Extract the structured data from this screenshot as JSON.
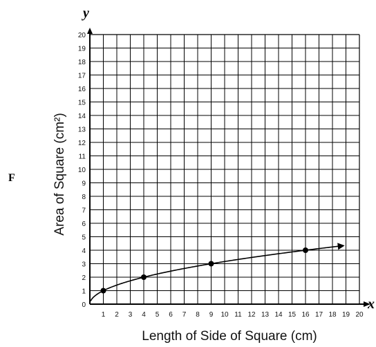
{
  "choice_label": "F",
  "chart_data": {
    "type": "line",
    "x_var": "x",
    "y_var": "y",
    "xlabel": "Length of Side of Square (cm)",
    "ylabel": "Area of Square (cm²)",
    "xlim": [
      0,
      20
    ],
    "ylim": [
      0,
      20
    ],
    "xticks": [
      1,
      2,
      3,
      4,
      5,
      6,
      7,
      8,
      9,
      10,
      11,
      12,
      13,
      14,
      15,
      16,
      17,
      18,
      19,
      20
    ],
    "yticks": [
      0,
      1,
      2,
      3,
      4,
      5,
      6,
      7,
      8,
      9,
      10,
      11,
      12,
      13,
      14,
      15,
      16,
      17,
      18,
      19,
      20
    ],
    "grid": true,
    "series": [
      {
        "points": [
          {
            "x": 1,
            "y": 1
          },
          {
            "x": 4,
            "y": 2
          },
          {
            "x": 9,
            "y": 3
          },
          {
            "x": 16,
            "y": 4
          }
        ],
        "curve": "y = sqrt(x)",
        "arrow_end": true
      }
    ]
  }
}
